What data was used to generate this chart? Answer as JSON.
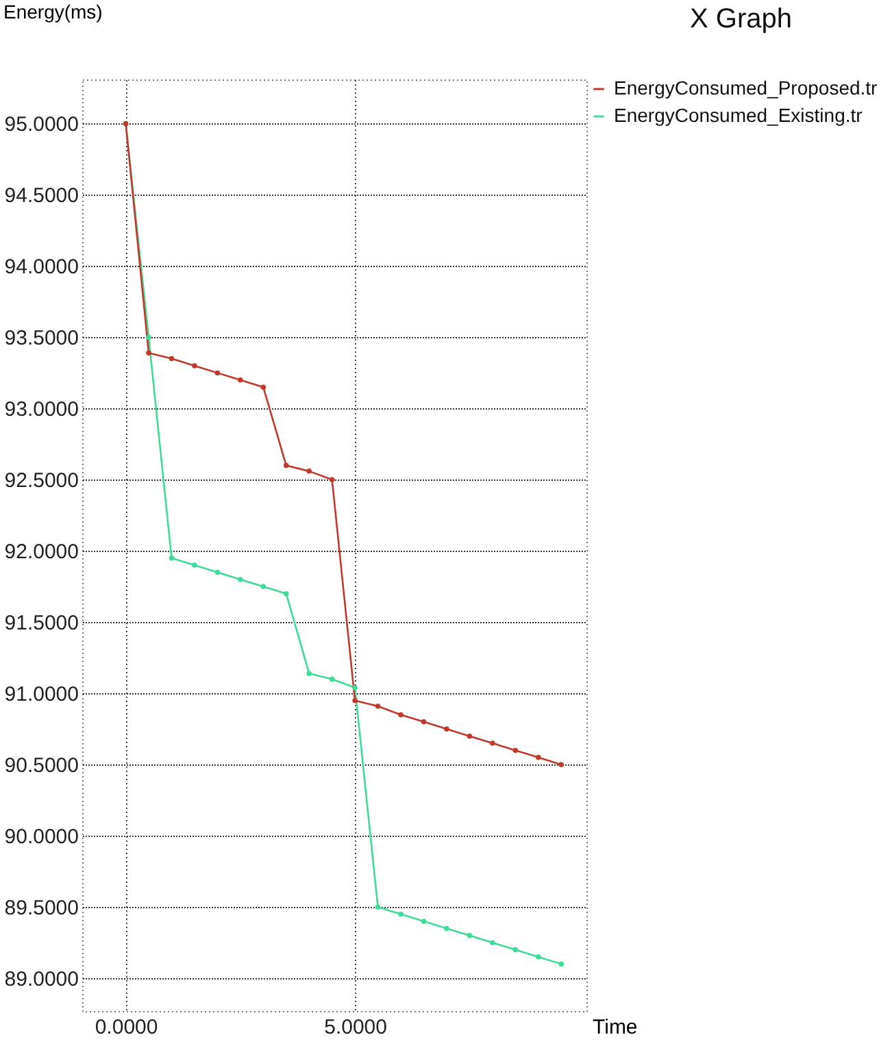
{
  "chart_data": {
    "type": "line",
    "title": "X Graph",
    "xlabel": "Time",
    "ylabel": "Energy(ms)",
    "x": [
      0,
      0.5,
      1,
      1.5,
      2,
      2.5,
      3,
      3.5,
      4,
      4.5,
      5,
      5.5,
      6,
      6.5,
      7,
      7.5,
      8,
      8.5,
      9,
      9.5
    ],
    "series": [
      {
        "name": "EnergyConsumed_Proposed.tr",
        "color": "#c0392b",
        "values": [
          95.0,
          93.39,
          93.35,
          93.3,
          93.25,
          93.2,
          93.15,
          92.6,
          92.56,
          92.5,
          90.95,
          90.91,
          90.85,
          90.8,
          90.75,
          90.7,
          90.65,
          90.6,
          90.55,
          90.5
        ]
      },
      {
        "name": "EnergyConsumed_Existing.tr",
        "color": "#3ddc97",
        "values": [
          95.0,
          93.5,
          91.95,
          91.9,
          91.85,
          91.8,
          91.75,
          91.7,
          91.14,
          91.1,
          91.04,
          89.5,
          89.45,
          89.4,
          89.35,
          89.3,
          89.25,
          89.2,
          89.15,
          89.1
        ]
      }
    ],
    "xlim": [
      -0.95,
      10.05
    ],
    "xticks": [
      {
        "value": 0,
        "label": "0.0000"
      },
      {
        "value": 5,
        "label": "5.0000"
      }
    ],
    "ylim": [
      88.77,
      95.31
    ],
    "yticks": [
      {
        "value": 89,
        "label": "89.0000"
      },
      {
        "value": 89.5,
        "label": "89.5000"
      },
      {
        "value": 90,
        "label": "90.0000"
      },
      {
        "value": 90.5,
        "label": "90.5000"
      },
      {
        "value": 91,
        "label": "91.0000"
      },
      {
        "value": 91.5,
        "label": "91.5000"
      },
      {
        "value": 92,
        "label": "92.0000"
      },
      {
        "value": 92.5,
        "label": "92.5000"
      },
      {
        "value": 93,
        "label": "93.0000"
      },
      {
        "value": 93.5,
        "label": "93.5000"
      },
      {
        "value": 94,
        "label": "94.0000"
      },
      {
        "value": 94.5,
        "label": "94.5000"
      },
      {
        "value": 95,
        "label": "95.0000"
      }
    ],
    "grid": true,
    "legend": "top right",
    "marker": "circle",
    "line_style": "solid"
  }
}
